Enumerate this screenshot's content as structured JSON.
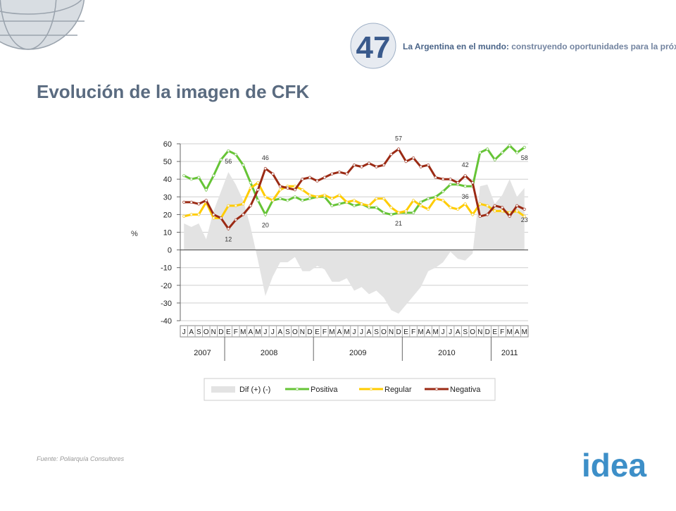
{
  "header": {
    "badge": "47",
    "tagline_bold": "La Argentina en el mundo:",
    "tagline": "construyendo oportunidades para la próxima década"
  },
  "title": "Evolución de la imagen de CFK",
  "source": "Fuente: Poliarquía Consultores",
  "logo": "idea",
  "chart_data": {
    "type": "line",
    "y_label": "%",
    "categories": [
      "J",
      "A",
      "S",
      "O",
      "N",
      "D",
      "E",
      "F",
      "M",
      "A",
      "M",
      "J",
      "J",
      "A",
      "S",
      "O",
      "N",
      "D",
      "E",
      "F",
      "M",
      "A",
      "M",
      "J",
      "J",
      "A",
      "S",
      "O",
      "N",
      "D",
      "E",
      "F",
      "M",
      "A",
      "M",
      "J",
      "J",
      "A",
      "S",
      "O",
      "N",
      "D",
      "E",
      "F",
      "M",
      "A",
      "M"
    ],
    "year_groups": [
      "2007",
      "2008",
      "2009",
      "2010",
      "2011"
    ],
    "ylim": [
      -40,
      60
    ],
    "yticks": [
      -40,
      -30,
      -20,
      -10,
      0,
      10,
      20,
      30,
      40,
      50,
      60
    ],
    "grid": true,
    "series": [
      {
        "name": "Dif (+) (-)",
        "kind": "area",
        "color": "#e3e3e3",
        "values": [
          15,
          13,
          15,
          6,
          22,
          33,
          44,
          37,
          28,
          13,
          -6,
          -26,
          -15,
          -7,
          -7,
          -4,
          -12,
          -12,
          -9,
          -11,
          -18,
          -18,
          -16,
          -23,
          -21,
          -25,
          -23,
          -27,
          -34,
          -36,
          -31,
          -26,
          -21,
          -12,
          -10,
          -7,
          -1,
          -5,
          -6,
          -2,
          36,
          37,
          26,
          31,
          40,
          30,
          35
        ]
      },
      {
        "name": "Positiva",
        "kind": "line",
        "color": "#66c436",
        "values": [
          42,
          40,
          41,
          34,
          42,
          51,
          56,
          54,
          48,
          38,
          28,
          20,
          28,
          29,
          28,
          30,
          28,
          29,
          30,
          30,
          25,
          26,
          27,
          25,
          26,
          24,
          24,
          21,
          20,
          21,
          21,
          21,
          27,
          29,
          30,
          33,
          37,
          37,
          36,
          36,
          55,
          57,
          51,
          55,
          59,
          55,
          58
        ],
        "value_labels": [
          null,
          null,
          null,
          null,
          null,
          null,
          "56",
          null,
          null,
          null,
          null,
          "20",
          null,
          null,
          null,
          null,
          null,
          null,
          null,
          null,
          null,
          null,
          null,
          null,
          null,
          null,
          null,
          null,
          null,
          "21",
          null,
          null,
          null,
          null,
          null,
          null,
          null,
          null,
          "36",
          null,
          null,
          null,
          null,
          null,
          null,
          null,
          "58"
        ]
      },
      {
        "name": "Regular",
        "kind": "line",
        "color": "#ffcc00",
        "values": [
          19,
          20,
          20,
          27,
          18,
          18,
          25,
          25,
          26,
          35,
          38,
          30,
          28,
          34,
          36,
          36,
          34,
          31,
          30,
          31,
          29,
          31,
          27,
          28,
          26,
          25,
          29,
          29,
          24,
          21,
          22,
          28,
          25,
          23,
          29,
          28,
          24,
          23,
          26,
          20,
          26,
          25,
          22,
          22,
          21,
          22,
          19
        ]
      },
      {
        "name": "Negativa",
        "kind": "line",
        "color": "#9b2a14",
        "values": [
          27,
          27,
          26,
          28,
          20,
          18,
          12,
          17,
          20,
          25,
          34,
          46,
          43,
          36,
          35,
          34,
          40,
          41,
          39,
          41,
          43,
          44,
          43,
          48,
          47,
          49,
          47,
          48,
          54,
          57,
          50,
          52,
          47,
          48,
          41,
          40,
          40,
          38,
          42,
          38,
          19,
          20,
          25,
          24,
          19,
          25,
          23
        ],
        "value_labels": [
          null,
          null,
          null,
          null,
          null,
          null,
          "12",
          null,
          null,
          null,
          null,
          "46",
          null,
          null,
          null,
          null,
          null,
          null,
          null,
          null,
          null,
          null,
          null,
          null,
          null,
          null,
          null,
          null,
          null,
          "57",
          null,
          null,
          null,
          null,
          null,
          null,
          null,
          null,
          "42",
          null,
          null,
          null,
          null,
          null,
          null,
          null,
          "23"
        ]
      }
    ]
  }
}
